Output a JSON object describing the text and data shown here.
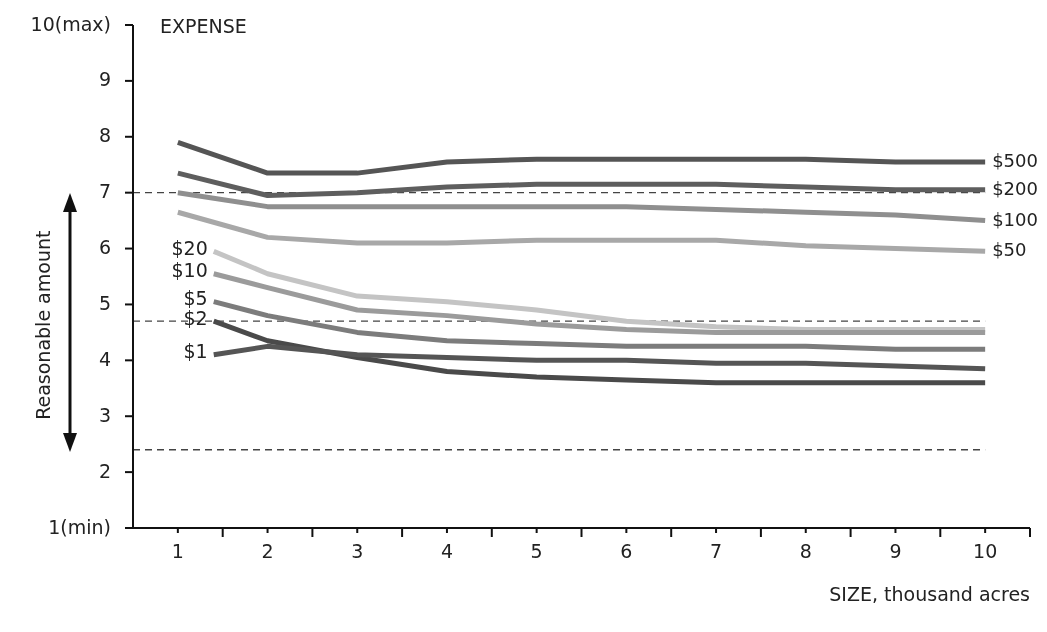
{
  "chart_data": {
    "type": "line",
    "title": "EXPENSE",
    "xlabel": "SIZE, thousand acres",
    "ylabel": "Reasonable amount",
    "xlim": [
      0.5,
      10.5
    ],
    "xticks": [
      1,
      {
        "value": 1.5,
        "label": null
      },
      2,
      {
        "value": 2.5,
        "label": null
      },
      3,
      {
        "value": 3.5,
        "label": null
      },
      4,
      {
        "value": 4.5,
        "label": null
      },
      5,
      {
        "value": 5.5,
        "label": null
      },
      6,
      {
        "value": 6.5,
        "label": null
      },
      7,
      {
        "value": 7.5,
        "label": null
      },
      8,
      {
        "value": 8.5,
        "label": null
      },
      9,
      {
        "value": 9.5,
        "label": null
      },
      10,
      {
        "value": 10.5,
        "label": null
      }
    ],
    "ylim": [
      1,
      10
    ],
    "yticks": [
      {
        "value": 1,
        "label": "1(min)"
      },
      2,
      3,
      4,
      5,
      6,
      7,
      8,
      9,
      {
        "value": 10,
        "label": "10(max)"
      }
    ],
    "grid": false,
    "marker": "none",
    "line_style": "solid",
    "ref_lines": [
      {
        "axis": "y",
        "value": 7,
        "color": "#444444",
        "line_style": "dashed"
      },
      {
        "axis": "y",
        "value": 4.7,
        "color": "#444444",
        "line_style": "dashed"
      },
      {
        "axis": "y",
        "value": 2.4,
        "color": "#444444",
        "line_style": "dashed"
      }
    ],
    "series": [
      {
        "name": "$500",
        "color": "#555555",
        "x": [
          1,
          2,
          3,
          4,
          5,
          6,
          7,
          8,
          9,
          10
        ],
        "values": [
          7.9,
          7.35,
          7.35,
          7.55,
          7.6,
          7.6,
          7.6,
          7.6,
          7.55,
          7.55
        ]
      },
      {
        "name": "$200",
        "color": "#5e5e5e",
        "x": [
          1,
          2,
          3,
          4,
          5,
          6,
          7,
          8,
          9,
          10
        ],
        "values": [
          7.35,
          6.95,
          7.0,
          7.1,
          7.15,
          7.15,
          7.15,
          7.1,
          7.05,
          7.05
        ]
      },
      {
        "name": "$100",
        "color": "#8f8f8f",
        "x": [
          1,
          2,
          3,
          4,
          5,
          6,
          7,
          8,
          9,
          10
        ],
        "values": [
          7.0,
          6.75,
          6.75,
          6.75,
          6.75,
          6.75,
          6.7,
          6.65,
          6.6,
          6.5
        ]
      },
      {
        "name": "$50",
        "color": "#a8a8a8",
        "x": [
          1,
          2,
          3,
          4,
          5,
          6,
          7,
          8,
          9,
          10
        ],
        "values": [
          6.65,
          6.2,
          6.1,
          6.1,
          6.15,
          6.15,
          6.15,
          6.05,
          6.0,
          5.95
        ]
      },
      {
        "name": "$20",
        "color": "#c4c4c4",
        "x": [
          1.4,
          2,
          3,
          4,
          5,
          6,
          7,
          8,
          9,
          10
        ],
        "values": [
          5.95,
          5.55,
          5.15,
          5.05,
          4.9,
          4.7,
          4.6,
          4.55,
          4.55,
          4.55
        ]
      },
      {
        "name": "$10",
        "color": "#9b9b9b",
        "x": [
          1.4,
          2,
          3,
          4,
          5,
          6,
          7,
          8,
          9,
          10
        ],
        "values": [
          5.55,
          5.3,
          4.9,
          4.8,
          4.65,
          4.55,
          4.5,
          4.5,
          4.5,
          4.5
        ]
      },
      {
        "name": "$5",
        "color": "#7c7c7c",
        "x": [
          1.4,
          2,
          3,
          4,
          5,
          6,
          7,
          8,
          9,
          10
        ],
        "values": [
          5.05,
          4.8,
          4.5,
          4.35,
          4.3,
          4.25,
          4.25,
          4.25,
          4.2,
          4.2
        ]
      },
      {
        "name": "$2",
        "color": "#4a4a4a",
        "x": [
          1.4,
          2,
          3,
          4,
          5,
          6,
          7,
          8,
          9,
          10
        ],
        "values": [
          4.7,
          4.35,
          4.05,
          3.8,
          3.7,
          3.65,
          3.6,
          3.6,
          3.6,
          3.6
        ]
      },
      {
        "name": "$1",
        "color": "#555555",
        "x": [
          1.4,
          2,
          3,
          4,
          5,
          6,
          7,
          8,
          9,
          10
        ],
        "values": [
          4.1,
          4.25,
          4.1,
          4.05,
          4.0,
          4.0,
          3.95,
          3.95,
          3.9,
          3.85
        ]
      }
    ]
  }
}
